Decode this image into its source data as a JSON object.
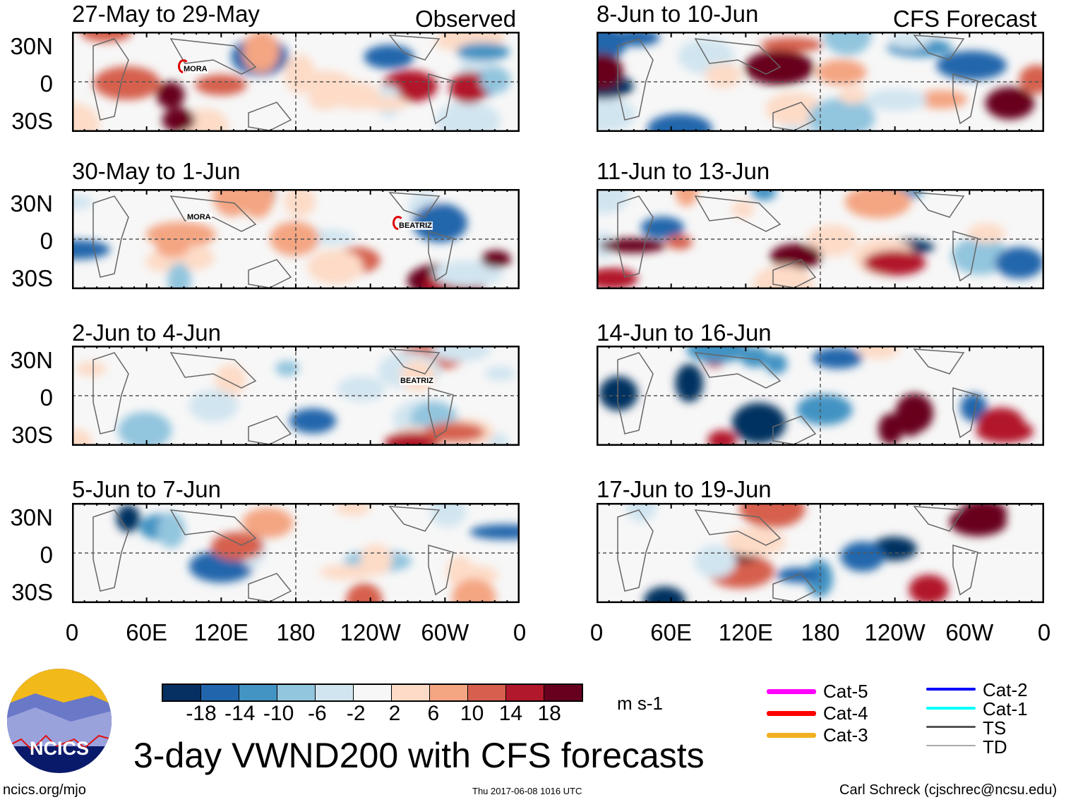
{
  "headers": {
    "left": "Observed",
    "right": "CFS Forecast"
  },
  "panels_left": [
    {
      "title": "27-May to 29-May",
      "storms": [
        "MORA"
      ]
    },
    {
      "title": "30-May to 1-Jun",
      "storms": [
        "MORA",
        "BEATRIZ"
      ]
    },
    {
      "title": "2-Jun to 4-Jun",
      "storms": [
        "BEATRIZ"
      ]
    },
    {
      "title": "5-Jun to 7-Jun",
      "storms": []
    }
  ],
  "panels_right": [
    {
      "title": "8-Jun to 10-Jun"
    },
    {
      "title": "11-Jun to 13-Jun"
    },
    {
      "title": "14-Jun to 16-Jun"
    },
    {
      "title": "17-Jun to 19-Jun"
    }
  ],
  "lat_labels": [
    "30N",
    "0",
    "30S"
  ],
  "lon_labels": [
    "0",
    "60E",
    "120E",
    "180",
    "120W",
    "60W",
    "0"
  ],
  "colorbar": {
    "colors": [
      "#053061",
      "#2166ac",
      "#4393c3",
      "#92c5de",
      "#d1e5f0",
      "#f7f7f7",
      "#fddbc7",
      "#f4a582",
      "#d6604d",
      "#b2182b",
      "#67001f"
    ],
    "labels": [
      "-18",
      "-14",
      "-10",
      "-6",
      "-2",
      "2",
      "6",
      "10",
      "14",
      "18"
    ],
    "units": "m s-1"
  },
  "legend": [
    {
      "label": "Cat-5",
      "color": "#ff00ff"
    },
    {
      "label": "Cat-4",
      "color": "#ff0000"
    },
    {
      "label": "Cat-3",
      "color": "#f0b020"
    },
    {
      "label": "Cat-2",
      "color": "#0000ff"
    },
    {
      "label": "Cat-1",
      "color": "#00ffff"
    },
    {
      "label": "TS",
      "color": "#555555"
    },
    {
      "label": "TD",
      "color": "#aaaaaa"
    }
  ],
  "logo_text": "NCICS",
  "title": "3-day VWND200 with CFS forecasts",
  "footer": {
    "left": "ncics.org/mjo",
    "center": "Thu 2017-06-08 1016 UTC",
    "right": "Carl Schreck (cjschrec@ncsu.edu)"
  }
}
